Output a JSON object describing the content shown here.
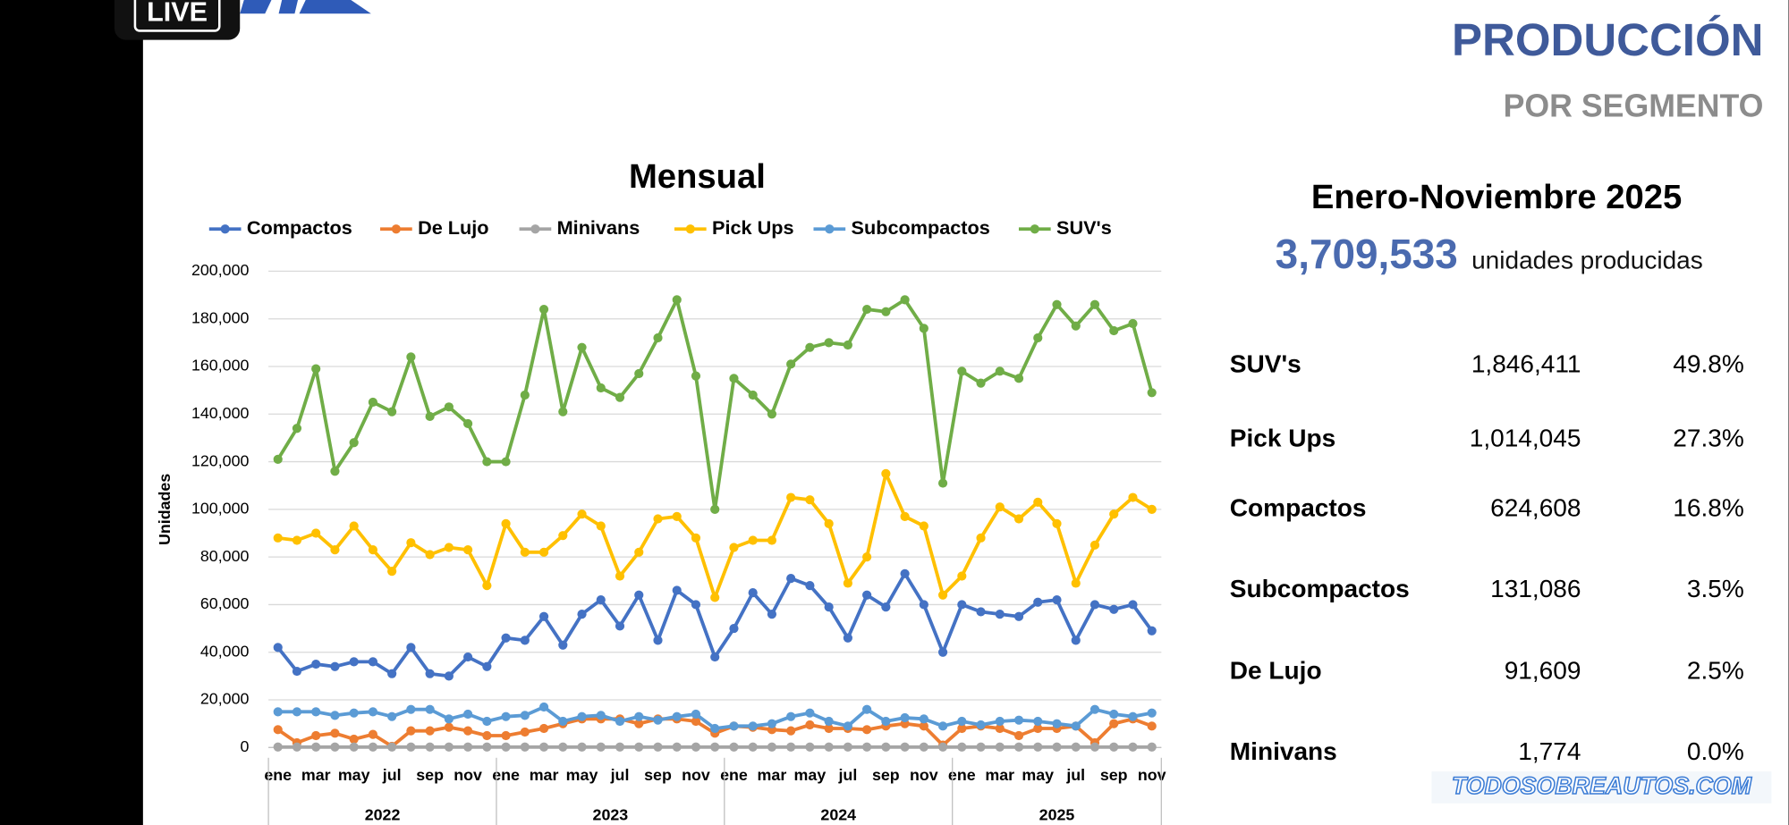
{
  "badge": "LIVE",
  "header": {
    "title": "PRODUCCIÓN",
    "subtitle": "POR SEGMENTO"
  },
  "summary": {
    "period": "Enero-Noviembre 2025",
    "total": "3,709,533",
    "total_caption": "unidades producidas"
  },
  "table": {
    "rows": [
      [
        "SUV's",
        "1,846,411",
        "49.8%"
      ],
      [
        "Pick Ups",
        "1,014,045",
        "27.3%"
      ],
      [
        "Compactos",
        "624,608",
        "16.8%"
      ],
      [
        "Subcompactos",
        "131,086",
        "3.5%"
      ],
      [
        "De Lujo",
        "91,609",
        "2.5%"
      ],
      [
        "Minivans",
        "1,774",
        "0.0%"
      ]
    ]
  },
  "watermark": "TODOSOBREAUTOS.COM",
  "chart_data": {
    "type": "line",
    "title": "Mensual",
    "y_label": "Unidades",
    "grid": true,
    "legend": "top",
    "categories": [
      "ene",
      null,
      "mar",
      null,
      "may",
      null,
      "jul",
      null,
      "sep",
      null,
      "nov",
      null,
      "ene",
      null,
      "mar",
      null,
      "may",
      null,
      "jul",
      null,
      "sep",
      null,
      "nov",
      null,
      "ene",
      null,
      "mar",
      null,
      "may",
      null,
      "jul",
      null,
      "sep",
      null,
      "nov",
      null,
      "ene",
      null,
      "mar",
      null,
      "may",
      null,
      "jul",
      null,
      "sep",
      null,
      "nov"
    ],
    "years": [
      "2022",
      "2023",
      "2024",
      "2025"
    ],
    "ylim": [
      0,
      200000
    ],
    "yticks": [
      {
        "value": 0,
        "label": "0"
      },
      {
        "value": 20000,
        "label": "20,000"
      },
      {
        "value": 40000,
        "label": "40,000"
      },
      {
        "value": 60000,
        "label": "60,000"
      },
      {
        "value": 80000,
        "label": "80,000"
      },
      {
        "value": 100000,
        "label": "100,000"
      },
      {
        "value": 120000,
        "label": "120,000"
      },
      {
        "value": 140000,
        "label": "140,000"
      },
      {
        "value": 160000,
        "label": "160,000"
      },
      {
        "value": 180000,
        "label": "180,000"
      },
      {
        "value": 200000,
        "label": "200,000"
      }
    ],
    "series": [
      {
        "name": "Compactos",
        "color": "#4472c4",
        "values": [
          42000,
          32000,
          35000,
          34000,
          36000,
          36000,
          31000,
          42000,
          31000,
          30000,
          38000,
          34000,
          46000,
          45000,
          55000,
          43000,
          56000,
          62000,
          51000,
          64000,
          45000,
          66000,
          60000,
          38000,
          50000,
          65000,
          56000,
          71000,
          68000,
          59000,
          46000,
          64000,
          59000,
          73000,
          60000,
          40000,
          60000,
          57000,
          56000,
          55000,
          61000,
          62000,
          45000,
          60000,
          58000,
          60000,
          49000
        ]
      },
      {
        "name": "De Lujo",
        "color": "#ed7d31",
        "values": [
          7500,
          2000,
          5000,
          6000,
          3500,
          5500,
          500,
          7000,
          7000,
          8500,
          7000,
          5000,
          5000,
          6500,
          8000,
          10000,
          12000,
          12000,
          12000,
          10000,
          12000,
          12000,
          11000,
          6000,
          9000,
          8500,
          7500,
          7000,
          9500,
          8000,
          8000,
          7500,
          9000,
          10000,
          9000,
          1000,
          8000,
          9000,
          8000,
          5000,
          8000,
          8000,
          9000,
          2000,
          10000,
          12000,
          9000
        ]
      },
      {
        "name": "Minivans",
        "color": "#a5a5a5",
        "values": [
          200,
          200,
          200,
          200,
          200,
          200,
          200,
          200,
          200,
          200,
          200,
          200,
          200,
          200,
          200,
          200,
          200,
          200,
          200,
          200,
          200,
          200,
          200,
          200,
          200,
          200,
          200,
          200,
          200,
          200,
          200,
          200,
          200,
          200,
          200,
          200,
          200,
          200,
          200,
          200,
          200,
          200,
          200,
          200,
          200,
          200,
          200
        ]
      },
      {
        "name": "Pick Ups",
        "color": "#ffc000",
        "values": [
          88000,
          87000,
          90000,
          83000,
          93000,
          83000,
          74000,
          86000,
          81000,
          84000,
          83000,
          68000,
          94000,
          82000,
          82000,
          89000,
          98000,
          93000,
          72000,
          82000,
          96000,
          97000,
          88000,
          63000,
          84000,
          87000,
          87000,
          105000,
          104000,
          94000,
          69000,
          80000,
          115000,
          97000,
          93000,
          64000,
          72000,
          88000,
          101000,
          96000,
          103000,
          94000,
          69000,
          85000,
          98000,
          105000,
          100000
        ]
      },
      {
        "name": "Subcompactos",
        "color": "#5b9bd5",
        "values": [
          15000,
          15000,
          15000,
          13500,
          14500,
          15000,
          13000,
          16000,
          16000,
          12000,
          14000,
          11000,
          13000,
          13500,
          17000,
          11000,
          13000,
          13500,
          11000,
          13000,
          11500,
          13000,
          14000,
          8000,
          9000,
          9000,
          10000,
          13000,
          14500,
          11000,
          9000,
          16000,
          11000,
          12500,
          12000,
          9000,
          11000,
          9500,
          11000,
          11500,
          11000,
          10000,
          9000,
          16000,
          14000,
          13000,
          14500
        ]
      },
      {
        "name": "SUV's",
        "color": "#70ad47",
        "values": [
          121000,
          134000,
          159000,
          116000,
          128000,
          145000,
          141000,
          164000,
          139000,
          143000,
          136000,
          120000,
          120000,
          148000,
          184000,
          141000,
          168000,
          151000,
          147000,
          157000,
          172000,
          188000,
          156000,
          100000,
          155000,
          148000,
          140000,
          161000,
          168000,
          170000,
          169000,
          184000,
          183000,
          188000,
          176000,
          111000,
          158000,
          153000,
          158000,
          155000,
          172000,
          186000,
          177000,
          186000,
          175000,
          178000,
          149000
        ]
      }
    ]
  }
}
